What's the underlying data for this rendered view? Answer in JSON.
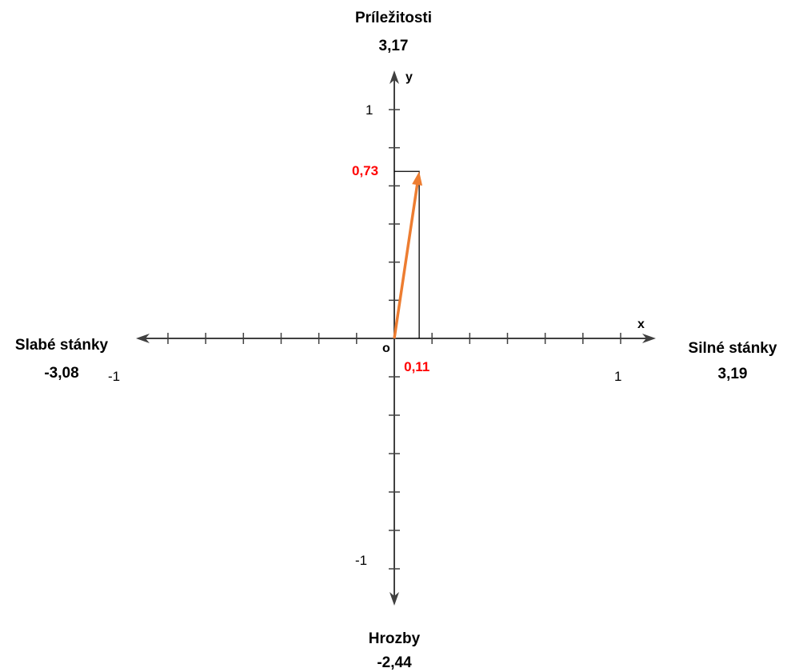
{
  "chart_data": {
    "type": "scatter",
    "title": "",
    "axes": {
      "x_name": "x",
      "y_name": "y",
      "origin_label": "o",
      "xlim": [
        -1,
        1
      ],
      "ylim": [
        -1,
        1
      ],
      "x_tick_count": 12,
      "y_tick_count": 12,
      "x_tick_labels": [
        {
          "value": -1,
          "label": "-1"
        },
        {
          "value": 1,
          "label": "1"
        }
      ],
      "y_tick_labels": [
        {
          "value": 1,
          "label": "1"
        },
        {
          "value": -1,
          "label": "-1"
        }
      ]
    },
    "quadrant_labels": {
      "top": {
        "name": "Príležitosti",
        "value": "3,17"
      },
      "right": {
        "name": "Silné stánky",
        "value": "3,19"
      },
      "left": {
        "name": "Slabé stánky",
        "value": "-3,08"
      },
      "bottom": {
        "name": "Hrozby",
        "value": "-2,44"
      }
    },
    "vector": {
      "x": 0.11,
      "y": 0.73,
      "x_label": "0,11",
      "y_label": "0,73"
    },
    "grid": false
  },
  "colors": {
    "axis": "#404040",
    "vector": "#ed7d31",
    "value_label": "#ff0000",
    "projection": "#000000",
    "text": "#000000"
  }
}
